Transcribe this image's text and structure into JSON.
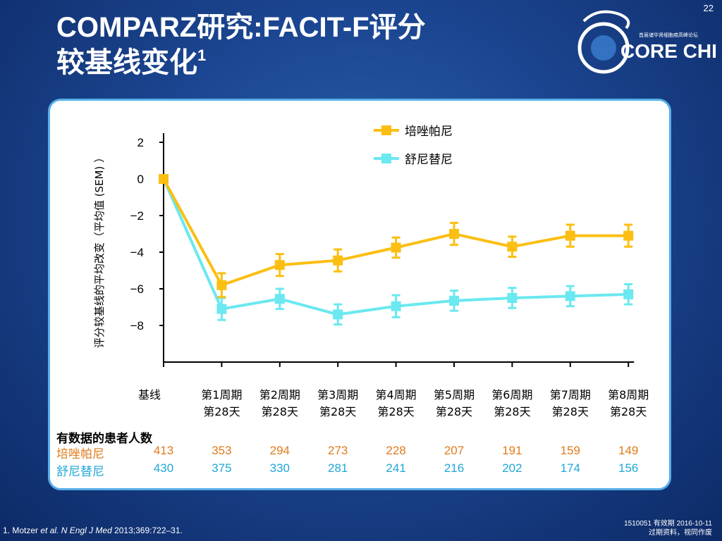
{
  "page_number": "22",
  "title_line1": "COMPARZ研究:FACIT-F评分",
  "title_line2": "较基线变化",
  "title_sup": "1",
  "logo": {
    "text": "CORE CHINA",
    "subtitle": "首届诸华肾细胞癌高峰论坛",
    "icon": "dragon-logo-icon"
  },
  "chart_data": {
    "type": "line",
    "ylabel": "评分较基线的平均改变（平均值 (SEM) ）",
    "ylim": [
      -10,
      2.5
    ],
    "yticks": [
      2,
      0,
      -2,
      -4,
      -6,
      -8
    ],
    "ytick_labels": [
      "2",
      "0",
      "−2",
      "−4",
      "−6",
      "−8"
    ],
    "categories": [
      "基线",
      "第1周期\n第28天",
      "第2周期\n第28天",
      "第3周期\n第28天",
      "第4周期\n第28天",
      "第5周期\n第28天",
      "第6周期\n第28天",
      "第7周期\n第28天",
      "第8周期\n第28天"
    ],
    "series": [
      {
        "name": "培唑帕尼",
        "color": "#fbbf13",
        "values": [
          0,
          -5.8,
          -4.7,
          -4.45,
          -3.75,
          -3.0,
          -3.7,
          -3.1,
          -3.1
        ],
        "sem": [
          0,
          0.65,
          0.6,
          0.6,
          0.55,
          0.6,
          0.55,
          0.6,
          0.6
        ]
      },
      {
        "name": "舒尼替尼",
        "color": "#6be8f0",
        "values": [
          0,
          -7.1,
          -6.55,
          -7.4,
          -6.95,
          -6.65,
          -6.5,
          -6.4,
          -6.3
        ],
        "sem": [
          0,
          0.6,
          0.55,
          0.55,
          0.6,
          0.55,
          0.55,
          0.55,
          0.55
        ]
      }
    ],
    "legend_position": "top-right",
    "grid": false
  },
  "patient_counts": {
    "title": "有数据的患者人数",
    "rows": [
      {
        "label": "培唑帕尼",
        "color": "#e07b1c",
        "values": [
          "413",
          "353",
          "294",
          "273",
          "228",
          "207",
          "191",
          "159",
          "149"
        ]
      },
      {
        "label": "舒尼替尼",
        "color": "#20a8d8",
        "values": [
          "430",
          "375",
          "330",
          "281",
          "241",
          "216",
          "202",
          "174",
          "156"
        ]
      }
    ]
  },
  "footnote": {
    "prefix": "1.  Motzer ",
    "italic1": "et al.",
    "mid": " ",
    "italic2": "N Engl J Med",
    "suffix": " 2013;369:722–31."
  },
  "code_line1": "1510051  有效期 2016-10-11",
  "code_line2": "过期资料，视同作废"
}
